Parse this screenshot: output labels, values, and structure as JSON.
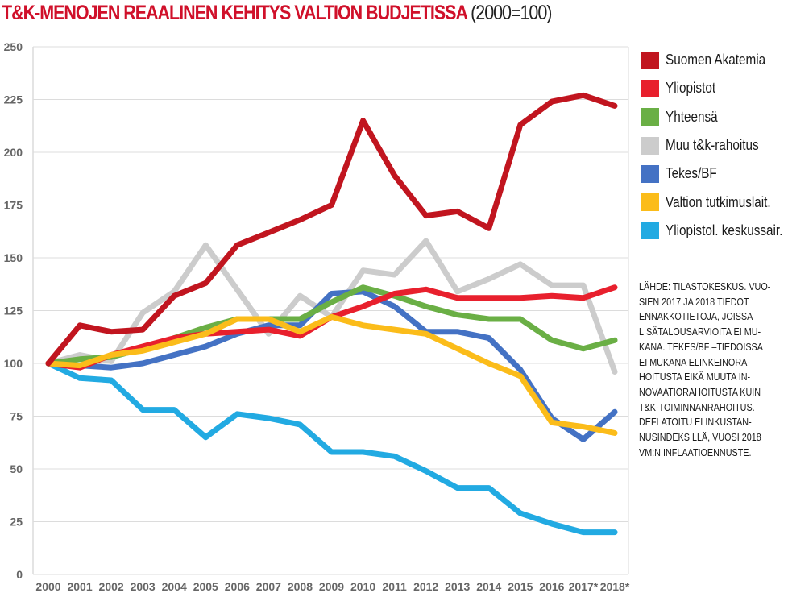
{
  "title": {
    "main": "T&K-MENOJEN REAALINEN KEHITYS VALTION BUDJETISSA",
    "sub": "(2000=100)"
  },
  "note_lines": [
    "LÄHDE: TILASTOKESKUS. VUO-",
    "SIEN 2017 JA 2018 TIEDOT",
    "ENNAKKOTIETOJA, JOISSA",
    "LISÄTALOUSARVIOITA EI MU-",
    "KANA. TEKES/BF –TIEDOISSA",
    "EI MUKANA ELINKEINORA-",
    "HOITUSTA EIKÄ MUUTA IN-",
    "NOVAATIORAHOITUSTA KUIN",
    "T&K-TOIMINNANRAHOITUS.",
    "DEFLATOITU ELINKUSTAN-",
    "NUSINDEKSILLÄ, VUOSI 2018",
    "VM:N INFLAATIOENNUSTE."
  ],
  "chart_data": {
    "type": "line",
    "title": "T&K-MENOJEN REAALINEN KEHITYS VALTION BUDJETISSA (2000=100)",
    "xlabel": "",
    "ylabel": "",
    "x": [
      "2000",
      "2001",
      "2002",
      "2003",
      "2004",
      "2005",
      "2006",
      "2007",
      "2008",
      "2009",
      "2010",
      "2011",
      "2012",
      "2013",
      "2014",
      "2015",
      "2016",
      "2017*",
      "2018*"
    ],
    "ylim": [
      0,
      250
    ],
    "yticks": [
      0,
      25,
      50,
      75,
      100,
      125,
      150,
      175,
      200,
      225,
      250
    ],
    "grid": true,
    "legend": "right",
    "series": [
      {
        "name": "Suomen Akatemia",
        "color": "#c1151f",
        "values": [
          100,
          118,
          115,
          116,
          132,
          138,
          156,
          162,
          168,
          175,
          215,
          189,
          170,
          172,
          164,
          213,
          224,
          227,
          222
        ]
      },
      {
        "name": "Yliopistot",
        "color": "#e8202d",
        "values": [
          100,
          98,
          104,
          108,
          112,
          114,
          115,
          116,
          113,
          122,
          127,
          133,
          135,
          131,
          131,
          131,
          132,
          131,
          136
        ]
      },
      {
        "name": "Yhteensä",
        "color": "#6aaf45",
        "values": [
          100,
          102,
          103,
          107,
          112,
          117,
          121,
          121,
          121,
          129,
          136,
          132,
          127,
          123,
          121,
          121,
          111,
          107,
          111
        ]
      },
      {
        "name": "Muu t&k-rahoitus",
        "color": "#cccccc",
        "values": [
          100,
          104,
          101,
          124,
          134,
          156,
          135,
          114,
          132,
          122,
          144,
          142,
          158,
          134,
          140,
          147,
          137,
          137,
          96
        ]
      },
      {
        "name": "Tekes/BF",
        "color": "#4472c4",
        "values": [
          100,
          99,
          98,
          100,
          104,
          108,
          114,
          118,
          118,
          133,
          134,
          127,
          115,
          115,
          112,
          97,
          74,
          64,
          77
        ]
      },
      {
        "name": "Valtion tutkimuslait.",
        "color": "#fbbc1a",
        "values": [
          100,
          99,
          104,
          106,
          110,
          114,
          121,
          121,
          115,
          122,
          118,
          116,
          114,
          107,
          100,
          94,
          72,
          70,
          67
        ]
      },
      {
        "name": "Yliopistol. keskussair.",
        "color": "#22aae2",
        "values": [
          100,
          93,
          92,
          78,
          78,
          65,
          76,
          74,
          71,
          58,
          58,
          56,
          49,
          41,
          41,
          29,
          24,
          20,
          20
        ]
      }
    ]
  }
}
